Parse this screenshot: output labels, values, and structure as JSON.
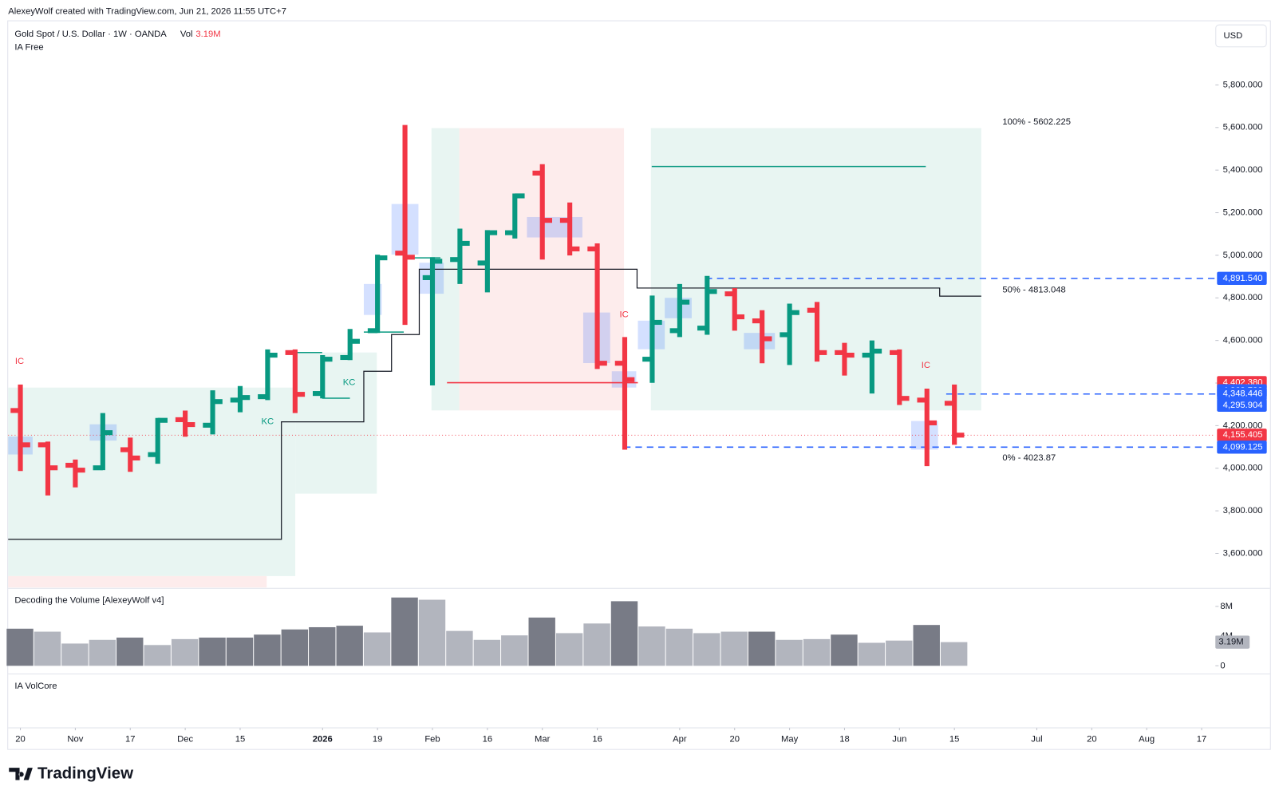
{
  "header": "AlexeyWolf created with TradingView.com, Jun 21, 2026 11:55 UTC+7",
  "brand": "TradingView",
  "chart_data": {
    "type": "ohlc",
    "title": "Gold Spot / U.S. Dollar · 1W · OANDA",
    "vol_label": "Vol",
    "indicator": "IA Free",
    "currency": "USD",
    "x": [
      0,
      1,
      2,
      3,
      4,
      5,
      6,
      7,
      8,
      9,
      10,
      11,
      12,
      13,
      14,
      15,
      16,
      17,
      18,
      19,
      20,
      21,
      22,
      23,
      24,
      25,
      26,
      27,
      28,
      29,
      30,
      31,
      32,
      33,
      34
    ],
    "open": [
      4271,
      4110,
      4014,
      4002,
      4087,
      4064,
      4228,
      4202,
      4320,
      4336,
      4543,
      4351,
      4520,
      4646,
      5010,
      4895,
      4980,
      4964,
      5106,
      5386,
      5164,
      5030,
      4493,
      4512,
      4646,
      4658,
      4819,
      4692,
      4627,
      4742,
      4543,
      4531,
      4543,
      4320,
      4305
    ],
    "high": [
      4393,
      4125,
      4041,
      4259,
      4144,
      4236,
      4271,
      4366,
      4386,
      4558,
      4558,
      4531,
      4654,
      5003,
      5612,
      4991,
      5125,
      5118,
      5290,
      5428,
      5248,
      5056,
      4616,
      4811,
      4865,
      4903,
      4846,
      4742,
      4773,
      4781,
      4589,
      4600,
      4558,
      4374,
      4393
    ],
    "low": [
      3987,
      3872,
      3910,
      3991,
      3983,
      4021,
      4148,
      4159,
      4263,
      4320,
      4259,
      4328,
      4508,
      4635,
      4673,
      4389,
      4865,
      4826,
      5079,
      4980,
      4999,
      4466,
      4087,
      4401,
      4616,
      4627,
      4646,
      4493,
      4485,
      4501,
      4435,
      4351,
      4297,
      4010,
      4110
    ],
    "close": [
      4110,
      4002,
      3991,
      4167,
      4048,
      4225,
      4205,
      4313,
      4332,
      4531,
      4347,
      4512,
      4596,
      4988,
      4991,
      4972,
      5056,
      5106,
      5279,
      5164,
      5030,
      4493,
      4416,
      4685,
      4780,
      4830,
      4711,
      4608,
      4731,
      4543,
      4531,
      4550,
      4328,
      4213,
      4155.405
    ],
    "up_color": "#089981",
    "down_color": "#f23645",
    "xlim": [
      -0.445,
      43.5
    ],
    "xticks": [
      {
        "value": 0,
        "label": "20"
      },
      {
        "value": 2,
        "label": "Nov"
      },
      {
        "value": 4,
        "label": "17"
      },
      {
        "value": 6,
        "label": "Dec"
      },
      {
        "value": 8,
        "label": "15"
      },
      {
        "value": 11,
        "label": "2026"
      },
      {
        "value": 13,
        "label": "19"
      },
      {
        "value": 15,
        "label": "Feb"
      },
      {
        "value": 17,
        "label": "16"
      },
      {
        "value": 19,
        "label": "Mar"
      },
      {
        "value": 21,
        "label": "16"
      },
      {
        "value": 24,
        "label": "Apr"
      },
      {
        "value": 26,
        "label": "20"
      },
      {
        "value": 28,
        "label": "May"
      },
      {
        "value": 30,
        "label": "18"
      },
      {
        "value": 32,
        "label": "Jun"
      },
      {
        "value": 34,
        "label": "15"
      },
      {
        "value": 37,
        "label": "Jul"
      },
      {
        "value": 39,
        "label": "20"
      },
      {
        "value": 41,
        "label": "Aug"
      },
      {
        "value": 43,
        "label": "17"
      }
    ],
    "ylim": [
      3440,
      6103
    ],
    "yticks": [
      {
        "value": 3600,
        "label": "3,600.000"
      },
      {
        "value": 3800,
        "label": "3,800.000"
      },
      {
        "value": 4000,
        "label": "4,000.000"
      },
      {
        "value": 4200,
        "label": "4,200.000"
      },
      {
        "value": 4400,
        "label": "4,400.000"
      },
      {
        "value": 4600,
        "label": "4,600.000"
      },
      {
        "value": 4800,
        "label": "4,800.000"
      },
      {
        "value": 5000,
        "label": "5,000.000"
      },
      {
        "value": 5200,
        "label": "5,200.000"
      },
      {
        "value": 5400,
        "label": "5,400.000"
      },
      {
        "value": 5600,
        "label": "5,600.000"
      },
      {
        "value": 5800,
        "label": "5,800.000"
      }
    ],
    "grid": false,
    "price_labels": [
      {
        "value": 4891.54,
        "label": "4,891.540",
        "color": "#2962ff",
        "line": "dashed"
      },
      {
        "value": 4402.38,
        "label": "4,402.380",
        "color": "#f23645"
      },
      {
        "value": 4363.72,
        "label": "4,363.720",
        "color": "#2962ff"
      },
      {
        "value": 4348.446,
        "label": "4,348.446",
        "color": "#2962ff",
        "line": "dashed"
      },
      {
        "value": 4295.904,
        "label": "4,295.904",
        "color": "#2962ff"
      },
      {
        "value": 4155.405,
        "label": "4,155.405",
        "color": "#f23645",
        "line": "dotted"
      },
      {
        "value": 4099.125,
        "label": "4,099.125",
        "color": "#2962ff",
        "line": "dashed"
      }
    ],
    "fib_levels": [
      {
        "value": 5602.225,
        "label": "100% - 5602.225"
      },
      {
        "value": 4813.048,
        "label": "50% - 4813.048"
      },
      {
        "value": 4023.87,
        "label": "0% - 4023.87"
      }
    ],
    "annotations": [
      {
        "text": "IC",
        "color": "#f23645"
      },
      {
        "text": "KC",
        "color": "#089981"
      },
      {
        "text": "KC",
        "color": "#089981"
      },
      {
        "text": "IC",
        "color": "#f23645"
      },
      {
        "text": "IC",
        "color": "#f23645"
      }
    ],
    "volume": {
      "title": "Decoding the Volume [AlexeyWolf v4]",
      "values": [
        5.0,
        4.6,
        3.0,
        3.5,
        3.8,
        2.8,
        3.6,
        3.8,
        3.8,
        4.2,
        4.9,
        5.2,
        5.4,
        4.5,
        9.2,
        8.9,
        4.7,
        3.5,
        4.1,
        6.5,
        4.4,
        5.7,
        8.7,
        5.3,
        5.0,
        4.4,
        4.6,
        4.6,
        3.5,
        3.6,
        4.2,
        3.1,
        3.4,
        5.5,
        3.19
      ],
      "colors": [
        "#787b86",
        "#b2b5be",
        "#b2b5be",
        "#b2b5be",
        "#787b86",
        "#b2b5be",
        "#b2b5be",
        "#787b86",
        "#787b86",
        "#787b86",
        "#787b86",
        "#787b86",
        "#787b86",
        "#b2b5be",
        "#787b86",
        "#b2b5be",
        "#b2b5be",
        "#b2b5be",
        "#b2b5be",
        "#787b86",
        "#b2b5be",
        "#b2b5be",
        "#787b86",
        "#b2b5be",
        "#b2b5be",
        "#b2b5be",
        "#b2b5be",
        "#787b86",
        "#b2b5be",
        "#b2b5be",
        "#787b86",
        "#b2b5be",
        "#b2b5be",
        "#787b86",
        "#b2b5be"
      ],
      "ylim": [
        0,
        10
      ],
      "yticks": [
        0,
        {
          "value": 4,
          "label": "4M"
        },
        {
          "value": 8,
          "label": "8M"
        }
      ],
      "last_label": "3.19M"
    },
    "volcore_title": "IA VolCore"
  }
}
